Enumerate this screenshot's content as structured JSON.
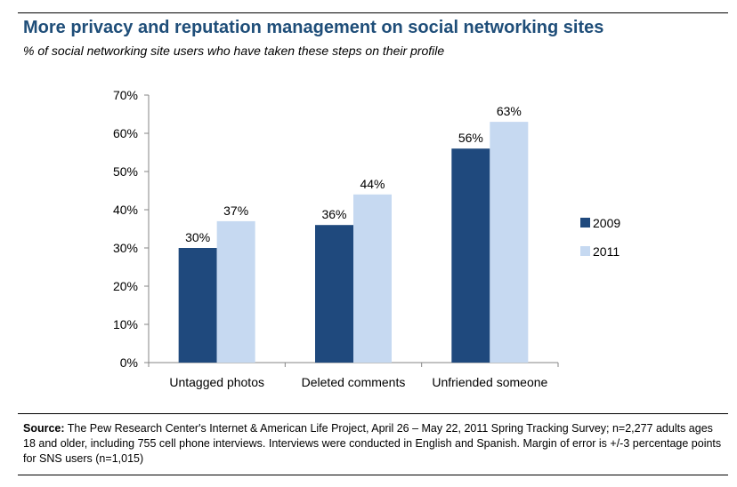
{
  "title": "More privacy and reputation management on social networking sites",
  "subtitle": "% of social networking site users who have taken these steps on their profile",
  "colors": {
    "title": "#1f4e79",
    "series_2009": "#1f497d",
    "series_2011": "#c6d9f1"
  },
  "source": {
    "label": "Source:",
    "text": "The Pew Research Center's Internet & American Life Project, April 26 – May 22, 2011 Spring Tracking Survey; n=2,277 adults ages 18 and older, including 755 cell phone interviews. Interviews were conducted in English and Spanish. Margin of error is +/-3 percentage points for SNS users (n=1,015)"
  },
  "chart_data": {
    "type": "bar",
    "categories": [
      "Untagged photos",
      "Deleted comments",
      "Unfriended someone"
    ],
    "series": [
      {
        "name": "2009",
        "values": [
          30,
          36,
          56
        ],
        "labels": [
          "30%",
          "36%",
          "56%"
        ]
      },
      {
        "name": "2011",
        "values": [
          37,
          44,
          63
        ],
        "labels": [
          "37%",
          "44%",
          "63%"
        ]
      }
    ],
    "ylim": [
      0,
      70
    ],
    "yticks": [
      "0%",
      "10%",
      "20%",
      "30%",
      "40%",
      "50%",
      "60%",
      "70%"
    ],
    "grid": false,
    "legend": "right"
  }
}
